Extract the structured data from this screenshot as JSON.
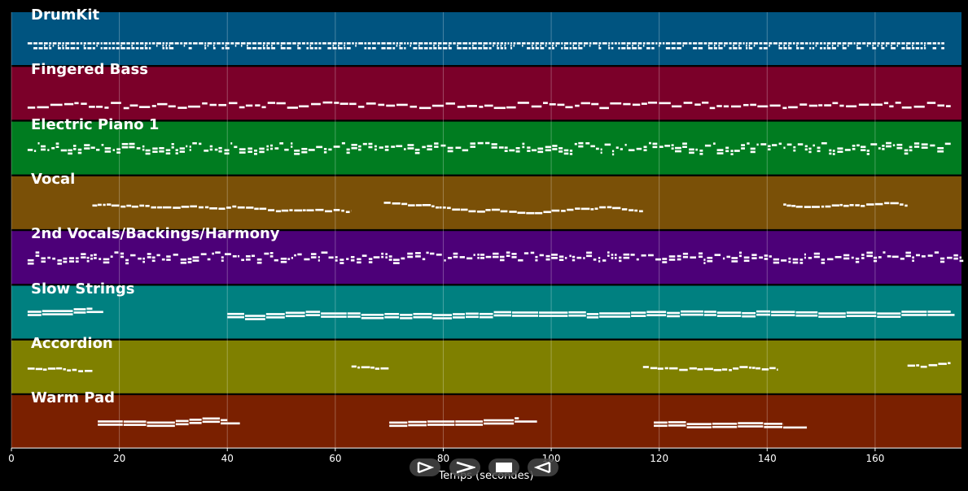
{
  "tracks": [
    {
      "name": "DrumKit",
      "color": "#005480",
      "pattern": "drums",
      "segments": [
        [
          3,
          173
        ]
      ]
    },
    {
      "name": "Fingered Bass",
      "color": "#7b0029",
      "pattern": "bass",
      "segments": [
        [
          3,
          174
        ]
      ]
    },
    {
      "name": "Electric Piano 1",
      "color": "#007c20",
      "pattern": "keys",
      "segments": [
        [
          3,
          174
        ]
      ]
    },
    {
      "name": "Vocal",
      "color": "#7a5007",
      "pattern": "melody",
      "segments": [
        [
          15,
          63
        ],
        [
          69,
          117
        ],
        [
          143,
          166
        ]
      ]
    },
    {
      "name": "2nd Vocals/Backings/Harmony",
      "color": "#4c0078",
      "pattern": "keys",
      "segments": [
        [
          3,
          176
        ]
      ]
    },
    {
      "name": "Slow Strings",
      "color": "#008080",
      "pattern": "pad",
      "segments": [
        [
          3,
          15
        ],
        [
          40,
          174
        ]
      ]
    },
    {
      "name": "Accordion",
      "color": "#7f8000",
      "pattern": "melody",
      "segments": [
        [
          3,
          15
        ],
        [
          63,
          70
        ],
        [
          117,
          142
        ],
        [
          166,
          174
        ]
      ]
    },
    {
      "name": "Warm Pad",
      "color": "#7a2000",
      "pattern": "pad",
      "segments": [
        [
          16,
          40
        ],
        [
          70,
          94
        ],
        [
          119,
          143
        ]
      ]
    }
  ],
  "x_axis": {
    "label": "Temps (secondes)",
    "min": 0,
    "max": 176,
    "ticks": [
      "0",
      "20",
      "40",
      "60",
      "80",
      "100",
      "120",
      "140",
      "160"
    ]
  },
  "grid": true,
  "controls": [
    {
      "name": "play",
      "icon": "play-icon"
    },
    {
      "name": "fast-forward",
      "icon": "fast-forward-icon"
    },
    {
      "name": "stop",
      "icon": "stop-icon"
    },
    {
      "name": "rewind",
      "icon": "rewind-icon"
    }
  ]
}
